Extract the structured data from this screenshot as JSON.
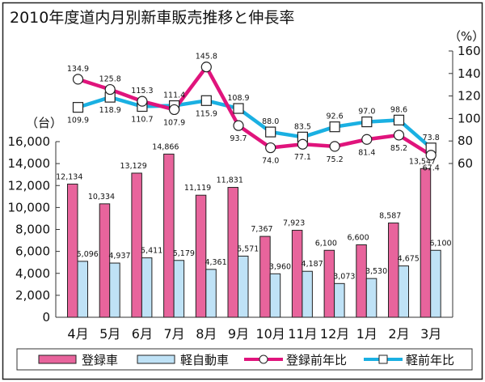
{
  "chart_data": {
    "type": "bar",
    "title": "2010年度道内月別新車販売推移と伸長率",
    "categories": [
      "4月",
      "5月",
      "6月",
      "7月",
      "8月",
      "9月",
      "10月",
      "11月",
      "12月",
      "1月",
      "2月",
      "3月"
    ],
    "left_axis": {
      "unit_label": "（台）",
      "ylim": [
        0,
        16000
      ],
      "ticks": [
        0,
        2000,
        4000,
        6000,
        8000,
        10000,
        12000,
        14000,
        16000
      ],
      "tick_labels": [
        "0",
        "2,000",
        "4,000",
        "6,000",
        "8,000",
        "10,000",
        "12,000",
        "14,000",
        "16,000"
      ]
    },
    "right_axis": {
      "unit_label": "（%）",
      "ylim": [
        60,
        160
      ],
      "ticks": [
        60,
        80,
        100,
        120,
        140,
        160
      ],
      "tick_labels": [
        "60",
        "80",
        "100",
        "120",
        "140",
        "160"
      ]
    },
    "series": [
      {
        "name": "登録車",
        "kind": "bar",
        "axis": "left",
        "color": "#e8649c",
        "values": [
          12134,
          10334,
          13129,
          14866,
          11119,
          11831,
          7367,
          7923,
          6100,
          6600,
          8587,
          13547
        ],
        "labels": [
          "12,134",
          "10,334",
          "13,129",
          "14,866",
          "11,119",
          "11,831",
          "7,367",
          "7,923",
          "6,100",
          "6,600",
          "8,587",
          "13,547"
        ]
      },
      {
        "name": "軽自動車",
        "kind": "bar",
        "axis": "left",
        "color": "#bfe2f6",
        "values": [
          5096,
          4937,
          5411,
          5179,
          4361,
          5571,
          3960,
          4187,
          3073,
          3530,
          4675,
          6100
        ],
        "labels": [
          "5,096",
          "4,937",
          "5,411",
          "5,179",
          "4,361",
          "5,571",
          "3,960",
          "4,187",
          "3,073",
          "3,530",
          "4,675",
          "6,100"
        ]
      },
      {
        "name": "登録前年比",
        "kind": "line",
        "marker": "circle",
        "axis": "right",
        "color": "#e0147c",
        "values": [
          134.9,
          125.8,
          115.3,
          107.9,
          145.8,
          93.7,
          74.0,
          77.1,
          75.2,
          81.4,
          85.2,
          67.4
        ],
        "labels": [
          "134.9",
          "125.8",
          "115.3",
          "107.9",
          "145.8",
          "93.7",
          "74.0",
          "77.1",
          "75.2",
          "81.4",
          "85.2",
          "67.4"
        ]
      },
      {
        "name": "軽前年比",
        "kind": "line",
        "marker": "square",
        "axis": "right",
        "color": "#1ab0e2",
        "values": [
          109.9,
          118.9,
          110.7,
          111.4,
          115.9,
          108.9,
          88.0,
          83.5,
          92.6,
          97.0,
          98.6,
          73.8
        ],
        "labels": [
          "109.9",
          "118.9",
          "110.7",
          "111.4",
          "115.9",
          "108.9",
          "88.0",
          "83.5",
          "92.6",
          "97.0",
          "98.6",
          "73.8"
        ]
      }
    ],
    "legend": "bottom",
    "grid": false
  }
}
